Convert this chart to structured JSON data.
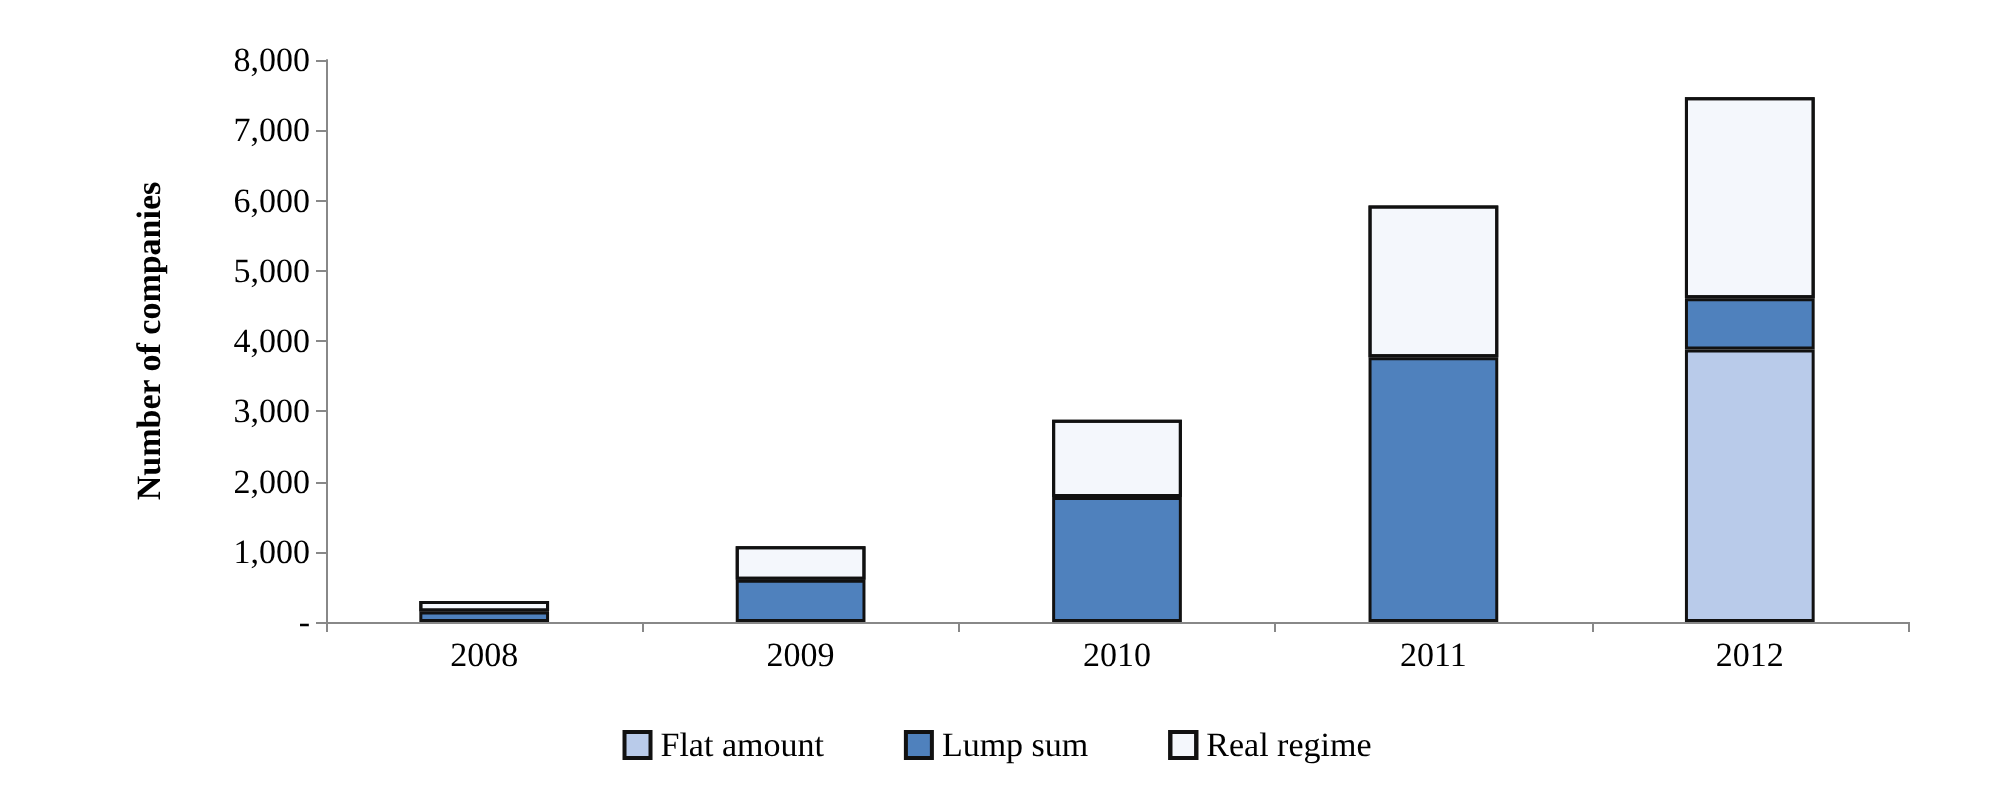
{
  "chart_data": {
    "type": "bar",
    "stacked": true,
    "ylabel": "Number of companies",
    "categories": [
      "2008",
      "2009",
      "2010",
      "2011",
      "2012"
    ],
    "series": [
      {
        "name": "Flat amount",
        "color": "#b9cbea",
        "values": [
          0,
          0,
          0,
          0,
          3880
        ]
      },
      {
        "name": "Lump sum",
        "color": "#4f81bd",
        "values": [
          150,
          600,
          1780,
          3770,
          730
        ]
      },
      {
        "name": "Real regime",
        "color": "#f4f7fc",
        "values": [
          150,
          480,
          1100,
          2160,
          2860
        ]
      }
    ],
    "ylim": [
      0,
      8000
    ],
    "yticks": [
      {
        "value": 0,
        "label": "-"
      },
      {
        "value": 1000,
        "label": "1,000"
      },
      {
        "value": 2000,
        "label": "2,000"
      },
      {
        "value": 3000,
        "label": "3,000"
      },
      {
        "value": 4000,
        "label": "4,000"
      },
      {
        "value": 5000,
        "label": "5,000"
      },
      {
        "value": 6000,
        "label": "6,000"
      },
      {
        "value": 7000,
        "label": "7,000"
      },
      {
        "value": 8000,
        "label": "8,000"
      }
    ],
    "grid": false,
    "legend": "bottom"
  }
}
